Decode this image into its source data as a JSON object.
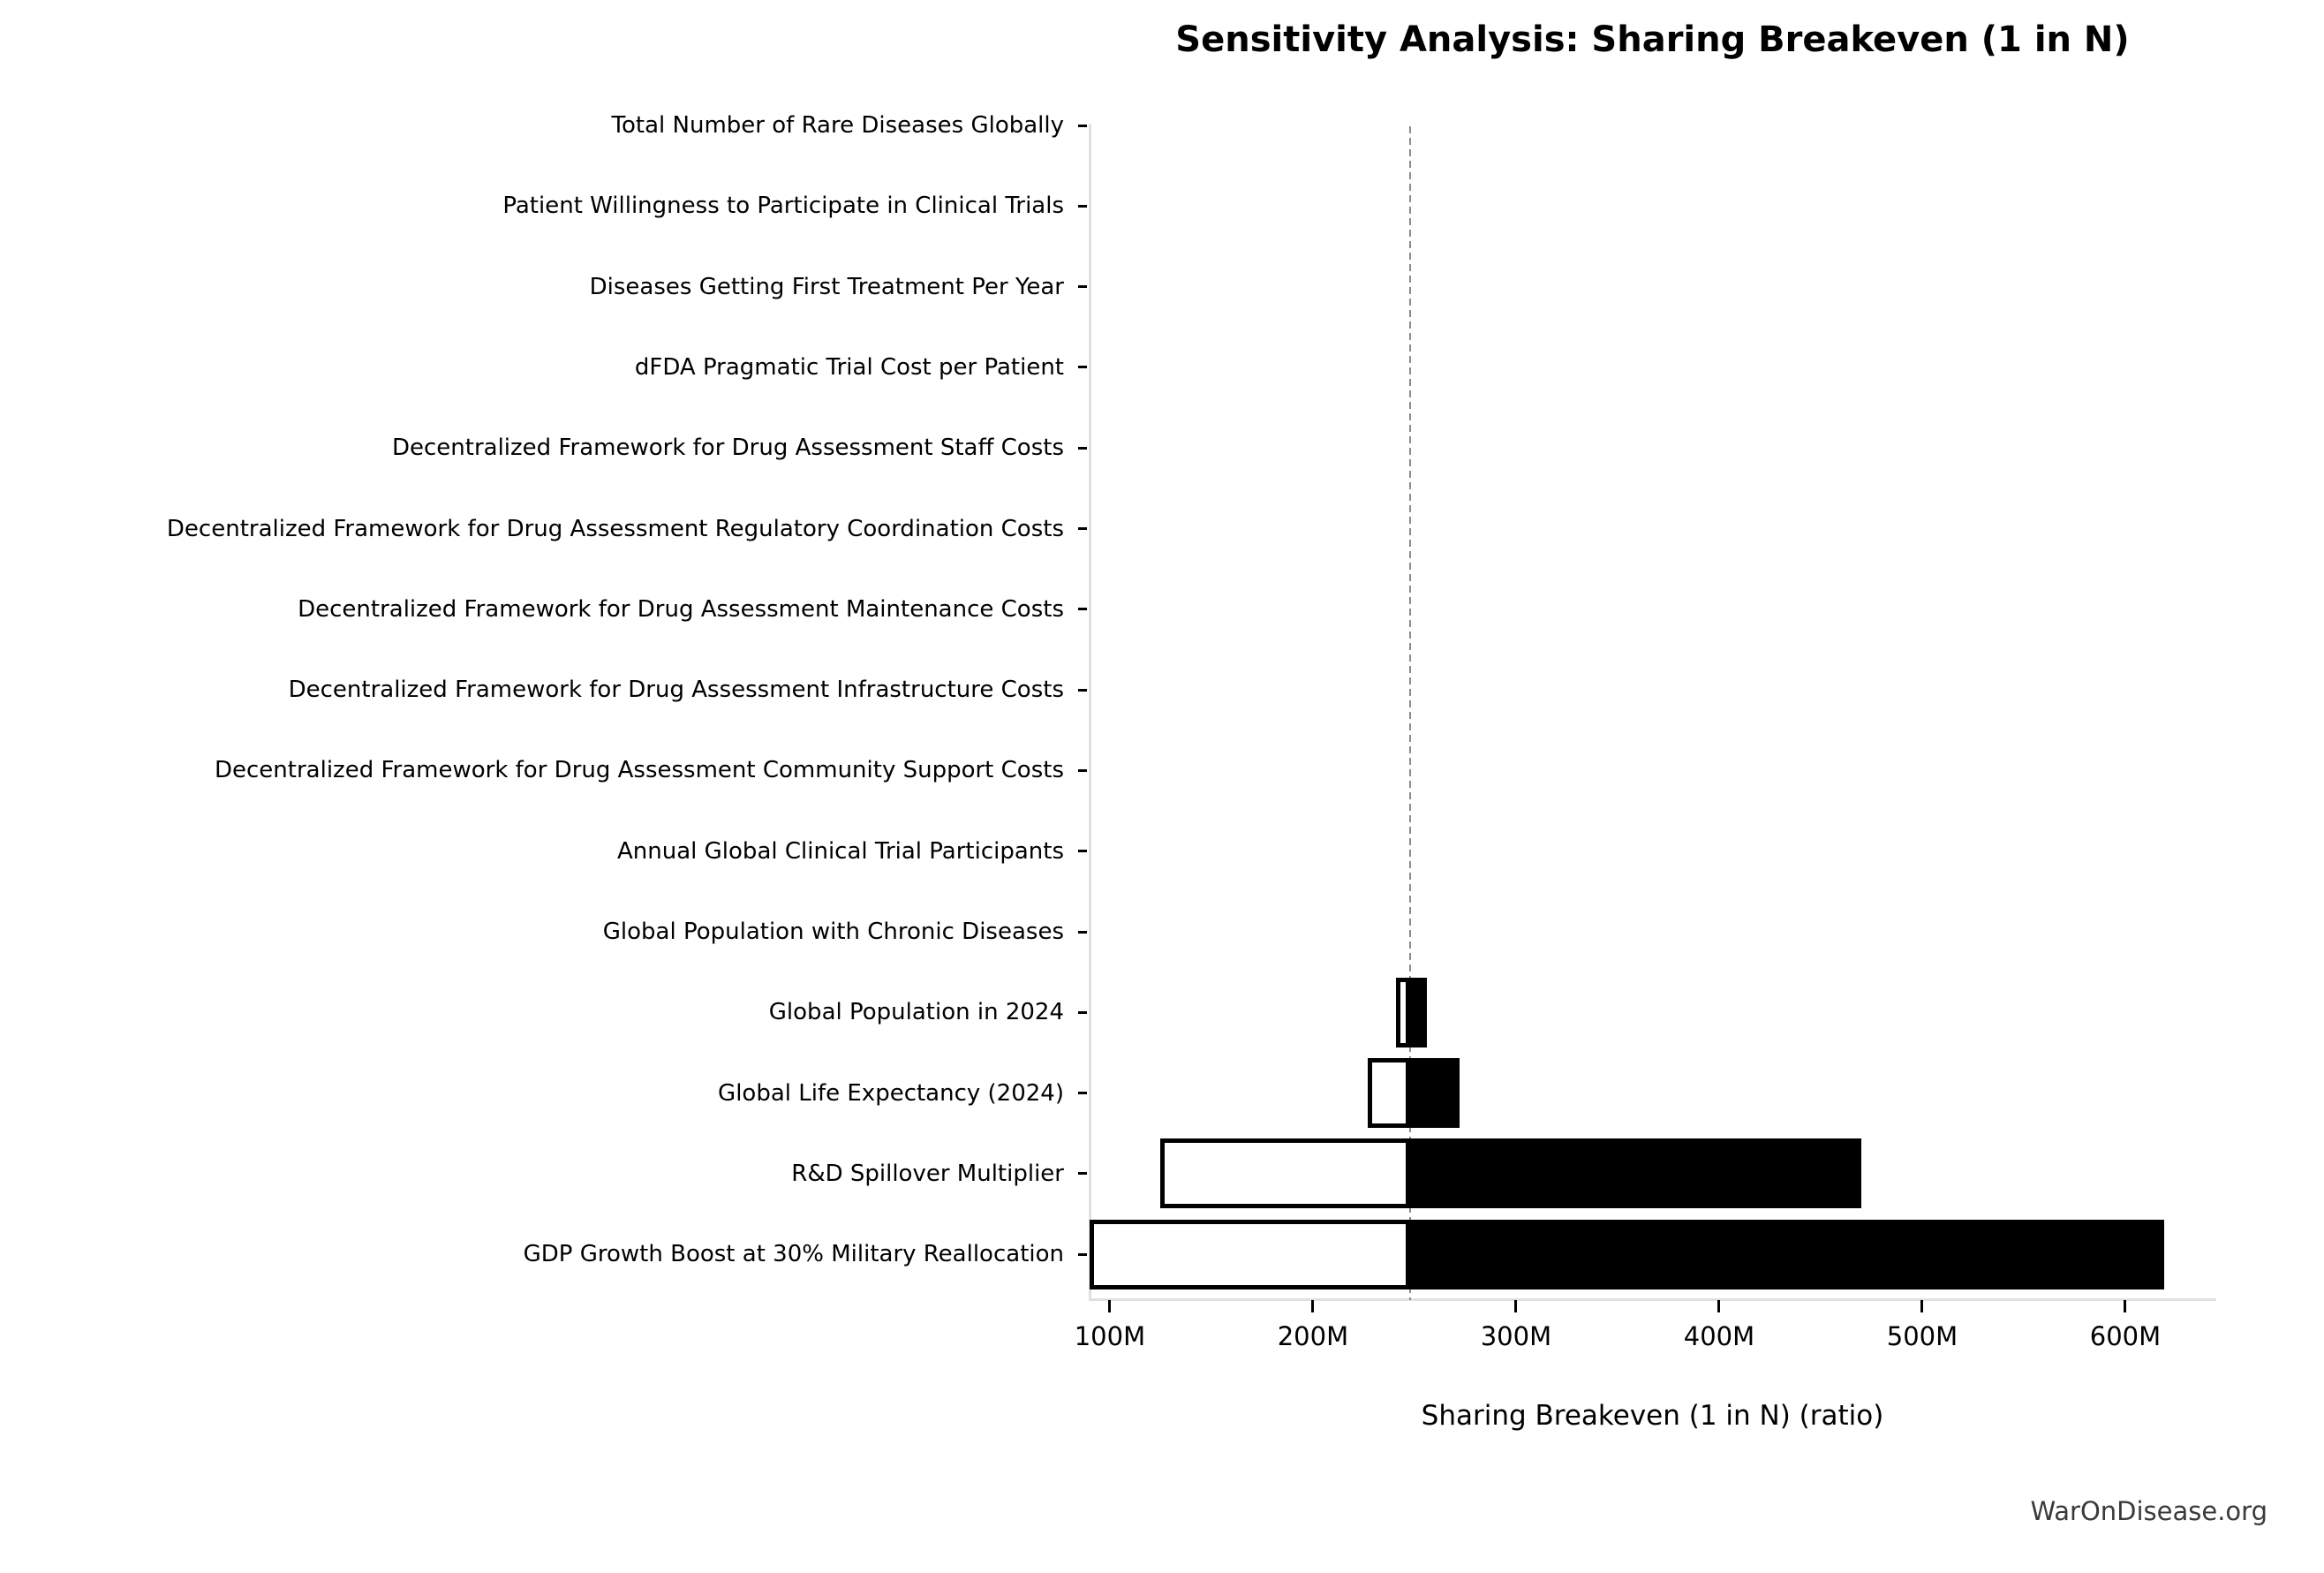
{
  "page": {
    "footer": "WarOnDisease.org"
  },
  "chart_data": {
    "type": "bar",
    "subtype": "tornado-sensitivity",
    "orientation": "horizontal",
    "title": "Sensitivity Analysis: Sharing Breakeven (1 in N)",
    "xlabel": "Sharing Breakeven (1 in N) (ratio)",
    "legend": "none",
    "grid": false,
    "baseline_value": 248000000,
    "xlim": [
      89600000,
      644800000
    ],
    "x_ticks": {
      "values": [
        100000000,
        200000000,
        300000000,
        400000000,
        500000000,
        600000000
      ],
      "labels": [
        "100M",
        "200M",
        "300M",
        "400M",
        "500M",
        "600M"
      ]
    },
    "categories": [
      "Total Number of Rare Diseases Globally",
      "Patient Willingness to Participate in Clinical Trials",
      "Diseases Getting First Treatment Per Year",
      "dFDA Pragmatic Trial Cost per Patient",
      "Decentralized Framework for Drug Assessment Staff Costs",
      "Decentralized Framework for Drug Assessment Regulatory Coordination Costs",
      "Decentralized Framework for Drug Assessment Maintenance Costs",
      "Decentralized Framework for Drug Assessment Infrastructure Costs",
      "Decentralized Framework for Drug Assessment Community Support Costs",
      "Annual Global Clinical Trial Participants",
      "Global Population with Chronic Diseases",
      "Global Population in 2024",
      "Global Life Expectancy (2024)",
      "R&D Spillover Multiplier",
      "GDP Growth Boost at 30% Military Reallocation"
    ],
    "series": [
      {
        "name": "low_breakeven",
        "values": [
          248000000,
          248000000,
          248000000,
          248000000,
          248000000,
          248000000,
          248000000,
          248000000,
          248000000,
          248000000,
          248000000,
          241000000,
          227000000,
          125000000,
          90000000
        ]
      },
      {
        "name": "high_breakeven",
        "values": [
          248000000,
          248000000,
          248000000,
          248000000,
          248000000,
          248000000,
          248000000,
          248000000,
          248000000,
          248000000,
          248000000,
          256000000,
          272000000,
          470000000,
          619000000
        ]
      }
    ],
    "bar_style": {
      "low_fill": "#ffffff",
      "high_fill": "#000000",
      "edge_color": "#000000"
    },
    "baseline_style": {
      "color": "#8c8c8c",
      "dashed": true
    }
  },
  "colors": {
    "background": "#ffffff",
    "spine": "#e0e0e0",
    "tick": "#000000",
    "text": "#000000",
    "footer_text": "#3a3a3a"
  }
}
